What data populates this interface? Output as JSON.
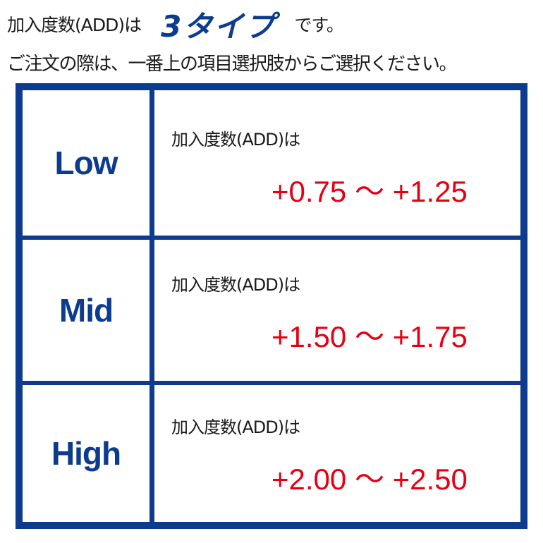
{
  "heading": {
    "prefix": "加入度数(ADD)は",
    "highlight": "3タイプ",
    "suffix": "です。"
  },
  "instruction": "ご注文の際は、一番上の項目選択肢からご選択ください。",
  "colors": {
    "accent": "#0d3b8e",
    "range": "#e60012"
  },
  "table": {
    "rows": [
      {
        "name": "Low",
        "label": "加入度数(ADD)は",
        "range": "+0.75 ～ +1.25"
      },
      {
        "name": "Mid",
        "label": "加入度数(ADD)は",
        "range": "+1.50 ～ +1.75"
      },
      {
        "name": "High",
        "label": "加入度数(ADD)は",
        "range": "+2.00 ～ +2.50"
      }
    ]
  }
}
